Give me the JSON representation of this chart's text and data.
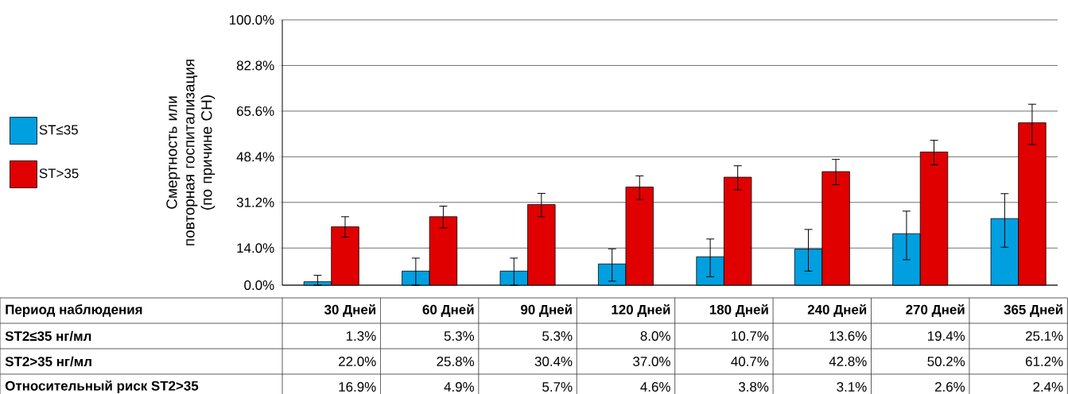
{
  "chart_data": {
    "type": "bar",
    "ylabel": "Смертность или повторная госпитализация (по причине СН)",
    "categories": [
      "30 Дней",
      "60 Дней",
      "90 Дней",
      "120 Дней",
      "180 Дней",
      "240 Дней",
      "270 Дней",
      "365 Дней"
    ],
    "series": [
      {
        "name": "ST≤35",
        "color": "#00a0e0",
        "values": [
          1.3,
          5.3,
          5.3,
          8.0,
          10.7,
          13.6,
          19.4,
          25.1
        ],
        "value_labels": [
          "1.3%",
          "5.3%",
          "5.3%",
          "8.0%",
          "10.7%",
          "13.6%",
          "19.4%",
          "25.1%"
        ],
        "errors": [
          [
            0,
            3.7
          ],
          [
            0,
            10.2
          ],
          [
            0,
            10.2
          ],
          [
            1.5,
            13.7
          ],
          [
            3.2,
            17.4
          ],
          [
            5.3,
            21.0
          ],
          [
            9.6,
            27.9
          ],
          [
            14.3,
            34.5
          ]
        ]
      },
      {
        "name": "ST>35",
        "color": "#e00000",
        "values": [
          22.0,
          25.8,
          30.4,
          37.0,
          40.7,
          42.8,
          50.2,
          61.2
        ],
        "value_labels": [
          "22.0%",
          "25.8%",
          "30.4%",
          "37.0%",
          "40.7%",
          "42.8%",
          "50.2%",
          "61.2%"
        ],
        "errors": [
          [
            18.1,
            25.8
          ],
          [
            21.6,
            29.8
          ],
          [
            25.8,
            34.6
          ],
          [
            32.3,
            41.2
          ],
          [
            35.9,
            45.0
          ],
          [
            37.9,
            47.4
          ],
          [
            45.4,
            54.6
          ],
          [
            53.0,
            68.2
          ]
        ]
      }
    ],
    "ylim": [
      0,
      100
    ],
    "yticks": [
      {
        "value": 0,
        "label": "0.0%"
      },
      {
        "value": 14,
        "label": "14.0%"
      },
      {
        "value": 31.2,
        "label": "31.2%"
      },
      {
        "value": 48.4,
        "label": "48.4%"
      },
      {
        "value": 65.6,
        "label": "65.6%"
      },
      {
        "value": 82.8,
        "label": "82.8%"
      },
      {
        "value": 100,
        "label": "100.0%"
      }
    ],
    "grid": "y",
    "legend": "left",
    "annotations": [
      "Период наблюдения",
      "ST2≤35 нг/мл",
      "ST2>35 нг/мл",
      "Относительный риск ST2>35",
      "16.9%",
      "4.9%",
      "5.7%",
      "4.6%",
      "3.8%",
      "3.1%",
      "2.6%",
      "2.4%"
    ]
  }
}
